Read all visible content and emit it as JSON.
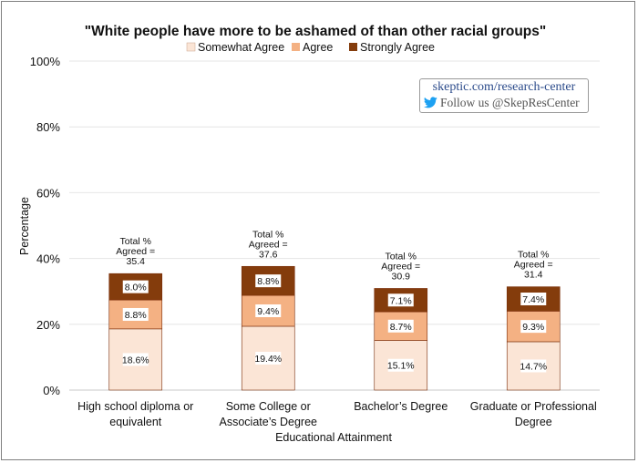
{
  "chart_data": {
    "type": "bar",
    "stacked": true,
    "title": "\"White people have more to be ashamed of than other racial groups\"",
    "xlabel": "Educational Attainment",
    "ylabel": "Percentage",
    "ylim": [
      0,
      100
    ],
    "yticks": [
      "0%",
      "20%",
      "40%",
      "60%",
      "80%",
      "100%"
    ],
    "ytick_values": [
      0,
      20,
      40,
      60,
      80,
      100
    ],
    "grid": true,
    "legend_position": "top",
    "categories": [
      [
        "High school diploma or",
        "equivalent"
      ],
      [
        "Some College or",
        "Associate’s Degree"
      ],
      [
        "Bachelor’s Degree"
      ],
      [
        "Graduate or Professional",
        "Degree"
      ]
    ],
    "series": [
      {
        "name": "Somewhat Agree",
        "color": "#fbe5d6",
        "values": [
          18.6,
          19.4,
          15.1,
          14.7
        ],
        "labels": [
          "18.6%",
          "19.4%",
          "15.1%",
          "14.7%"
        ]
      },
      {
        "name": "Agree",
        "color": "#f4b183",
        "values": [
          8.8,
          9.4,
          8.7,
          9.3
        ],
        "labels": [
          "8.8%",
          "9.4%",
          "8.7%",
          "9.3%"
        ]
      },
      {
        "name": "Strongly Agree",
        "color": "#843c0c",
        "values": [
          8.0,
          8.8,
          7.1,
          7.4
        ],
        "labels": [
          "8.0%",
          "8.8%",
          "7.1%",
          "7.4%"
        ]
      }
    ],
    "total_prefix": [
      "Total %",
      "Agreed ="
    ],
    "totals": [
      "35.4",
      "37.6",
      "30.9",
      "31.4"
    ]
  },
  "branding": {
    "url": "skeptic.com/research-center",
    "follow": "Follow us @SkepResCenter",
    "icon": "twitter-bird-icon",
    "icon_color": "#1da1f2"
  }
}
